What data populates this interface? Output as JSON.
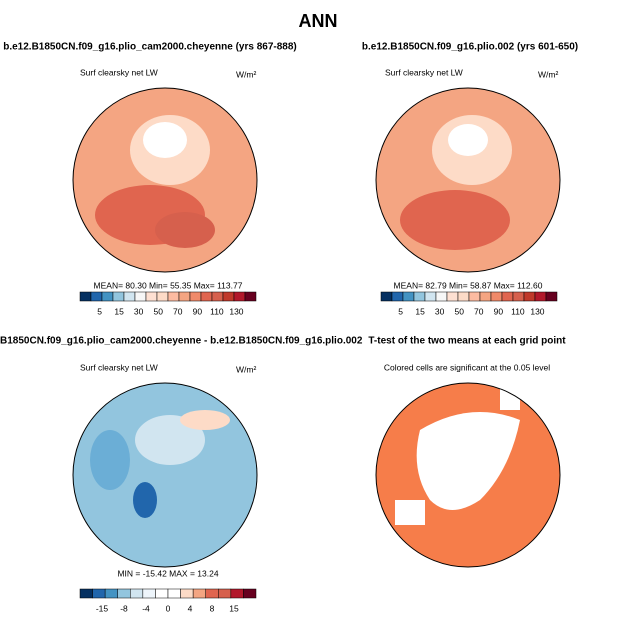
{
  "header": {
    "title": "ANN"
  },
  "panels": [
    {
      "title": "b.e12.B1850CN.f09_g16.plio_cam2000.cheyenne (yrs 867-888)",
      "subtitle": "Surf clearsky net LW",
      "units": "W/m²",
      "stats": "MEAN=   80.30   Min=   55.35   Max=  113.77",
      "colorbar_labels": [
        5,
        15,
        30,
        50,
        70,
        90,
        110,
        130
      ]
    },
    {
      "title": "b.e12.B1850CN.f09_g16.plio.002 (yrs 601-650)",
      "subtitle": "Surf clearsky net LW",
      "units": "W/m²",
      "stats": "MEAN=   82.79   Min=   58.87   Max=  112.60",
      "colorbar_labels": [
        5,
        15,
        30,
        50,
        70,
        90,
        110,
        130
      ]
    },
    {
      "title": "B1850CN.f09_g16.plio_cam2000.cheyenne - b.e12.B1850CN.f09_g16.plio.002",
      "subtitle": "Surf clearsky net LW",
      "units": "W/m²",
      "stats": "MIN = -15.42  MAX =  13.24",
      "colorbar_labels": [
        -15,
        -8,
        -4,
        0,
        4,
        8,
        15
      ]
    },
    {
      "title": "T-test of the two means at each grid point",
      "subtitle": "Colored cells are significant at the 0.05 level"
    }
  ]
}
